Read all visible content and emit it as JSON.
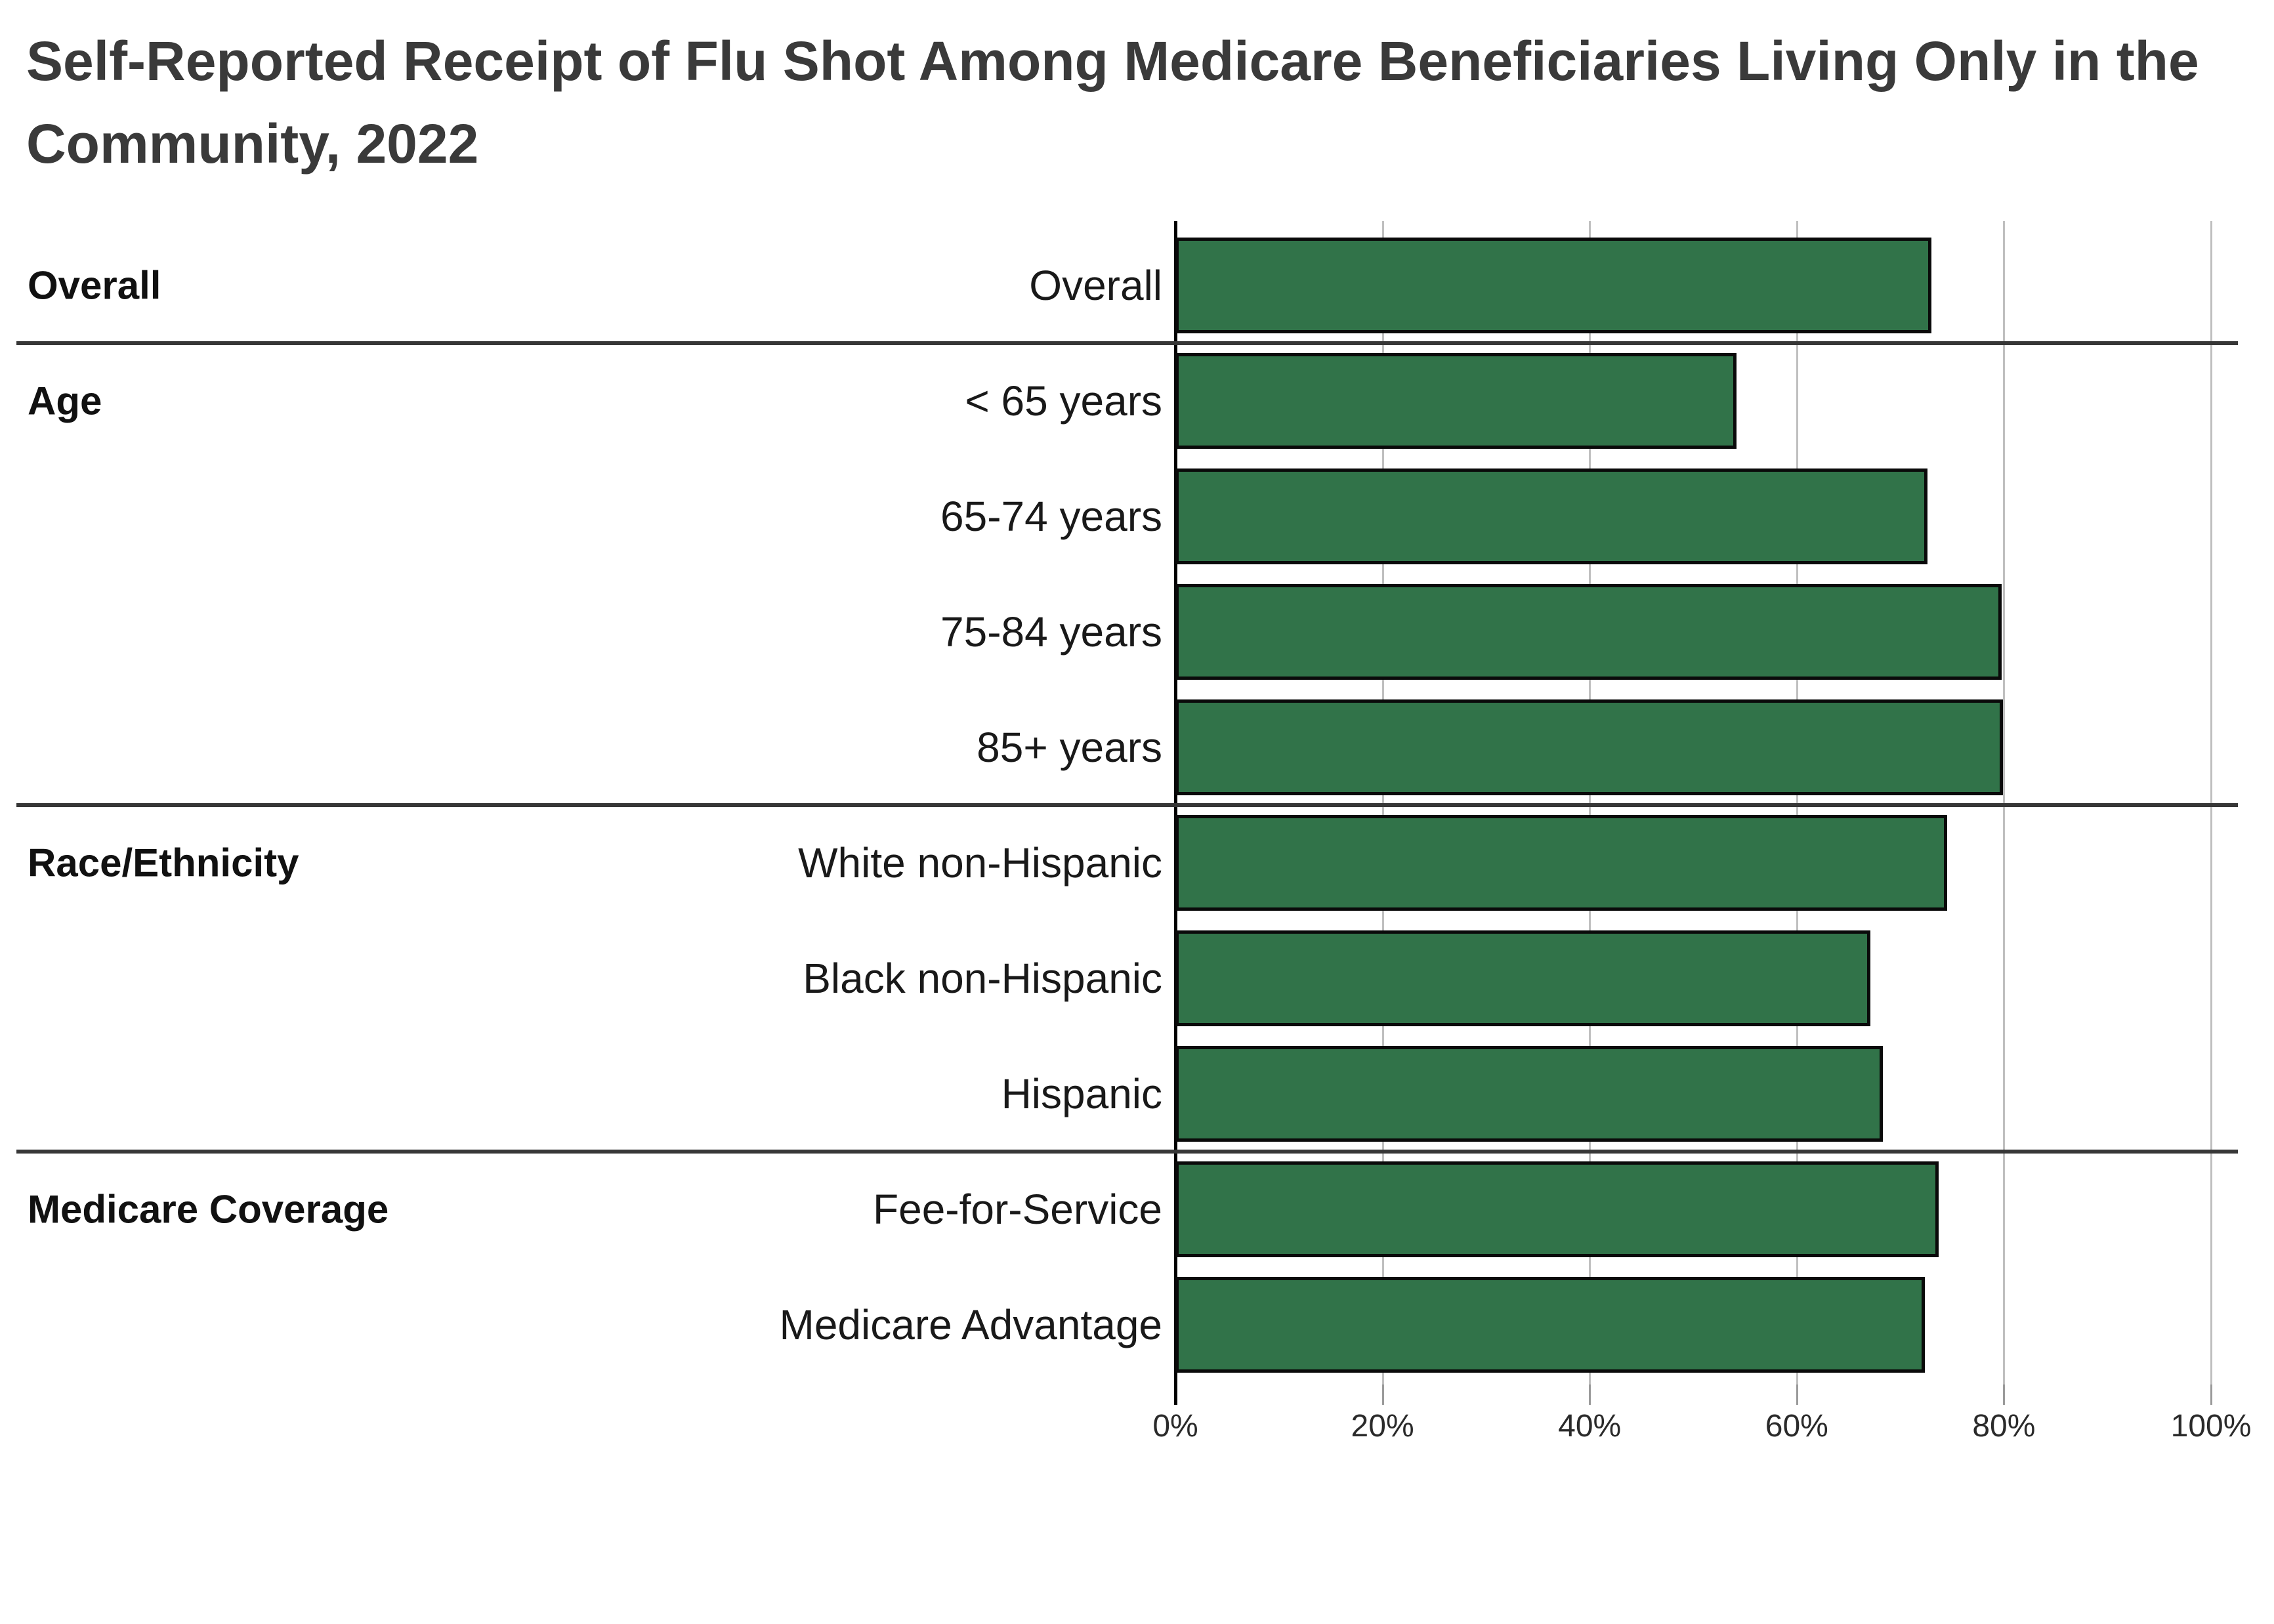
{
  "title_lines": [
    "Self-Reported Receipt of Flu Shot Among Medicare Beneficiaries Living Only in the",
    "Community, 2022"
  ],
  "chart_data": {
    "type": "bar",
    "orientation": "horizontal",
    "title": "Self-Reported Receipt of Flu Shot Among Medicare Beneficiaries Living Only in the Community, 2022",
    "unit": "%",
    "xlim": [
      0,
      100
    ],
    "grid": "vertical",
    "legend": "none",
    "x_ticks": [
      {
        "value": 0,
        "label": "0%"
      },
      {
        "value": 20,
        "label": "20%"
      },
      {
        "value": 40,
        "label": "40%"
      },
      {
        "value": 60,
        "label": "60%"
      },
      {
        "value": 80,
        "label": "80%"
      },
      {
        "value": 100,
        "label": "100%"
      }
    ],
    "categories": [
      "Overall",
      "< 65 years",
      "65-74 years",
      "75-84 years",
      "85+ years",
      "White non-Hispanic",
      "Black non-Hispanic",
      "Hispanic",
      "Fee-for-Service",
      "Medicare Advantage"
    ],
    "values": [
      73.0,
      54.2,
      72.6,
      79.8,
      79.9,
      74.5,
      67.1,
      68.3,
      73.7,
      72.4
    ],
    "groups": [
      {
        "label": "Overall",
        "rows": [
          {
            "label": "Overall",
            "value": 73.0
          }
        ]
      },
      {
        "label": "Age",
        "rows": [
          {
            "label": "< 65 years",
            "value": 54.2
          },
          {
            "label": "65-74 years",
            "value": 72.6
          },
          {
            "label": "75-84 years",
            "value": 79.8
          },
          {
            "label": "85+ years",
            "value": 79.9
          }
        ]
      },
      {
        "label": "Race/Ethnicity",
        "rows": [
          {
            "label": "White non-Hispanic",
            "value": 74.5
          },
          {
            "label": "Black non-Hispanic",
            "value": 67.1
          },
          {
            "label": "Hispanic",
            "value": 68.3
          }
        ]
      },
      {
        "label": "Medicare Coverage",
        "rows": [
          {
            "label": "Fee-for-Service",
            "value": 73.7
          },
          {
            "label": "Medicare Advantage",
            "value": 72.4
          }
        ]
      }
    ],
    "colors": {
      "page_bg": "#ffffff",
      "bar_fill": "#317349",
      "bar_border": "#0a0a0a",
      "gridline": "#bfbfbf",
      "axis_line": "#000000",
      "tick_mark": "#9a9a9a",
      "separator": "#373737",
      "title_text": "#3a3a3a",
      "group_label_text": "#111111",
      "row_label_text": "#191919",
      "tick_label_text": "#2a2a2a"
    }
  }
}
